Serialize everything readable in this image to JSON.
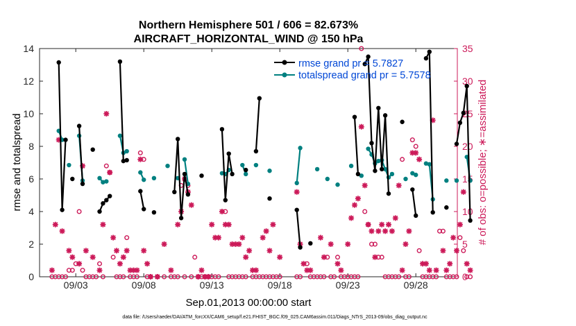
{
  "chart_data": {
    "type": "line",
    "title": "Northern Hemisphere 501 / 606 = 82.673%",
    "subtitle": "AIRCRAFT_HORIZONTAL_WIND @ 150 hPa",
    "xlabel": "Sep.01,2013 00:00:00 start",
    "ylabel": "rmse and totalspread",
    "y2label": "# of obs: o=possible; ∗=assimilated",
    "footnote": "data file: /Users/raeder/DAI/ATM_forcXX/CAM6_setup/f.e21.FHIST_BGC.f09_025.CAM6assim.011/Diags_NTrS_2013-09/obs_diag_output.nc",
    "xlim": [
      1,
      31
    ],
    "ylim": [
      0,
      14
    ],
    "y2lim": [
      0,
      35
    ],
    "xticks": [
      3,
      8,
      13,
      18,
      23,
      28
    ],
    "xtick_labels": [
      "09/03",
      "09/08",
      "09/13",
      "09/18",
      "09/23",
      "09/28"
    ],
    "yticks": [
      0,
      2,
      4,
      6,
      8,
      10,
      12,
      14
    ],
    "y2ticks": [
      0,
      5,
      10,
      15,
      20,
      25,
      30,
      35
    ],
    "legend": {
      "position": "top-right",
      "entries": [
        "rmse grand pr = 5.7827",
        "totalspread grand pr = 5.7578"
      ]
    },
    "colors": {
      "rmse": "#000000",
      "spread": "#008080",
      "obs": "#cc1a59",
      "legend_text": "#0047d6"
    },
    "series": [
      {
        "name": "rmse",
        "axis": "left",
        "segments": [
          [
            [
              1.75,
              13.15
            ],
            [
              2,
              4.1
            ],
            [
              2.25,
              8.4
            ]
          ],
          [
            [
              2.75,
              6.0
            ]
          ],
          [
            [
              3.25,
              9.25
            ],
            [
              3.5,
              5.7
            ]
          ],
          [
            [
              4.25,
              7.8
            ]
          ],
          [
            [
              4.75,
              4.0
            ],
            [
              5,
              4.5
            ],
            [
              5.25,
              4.7
            ],
            [
              5.5,
              4.95
            ]
          ],
          [
            [
              6.25,
              13.2
            ],
            [
              6.5,
              7.1
            ],
            [
              6.75,
              7.15
            ]
          ],
          [
            [
              7.75,
              5.25
            ],
            [
              8,
              4.15
            ]
          ],
          [
            [
              8.75,
              3.95
            ]
          ],
          [
            [
              10.25,
              5.2
            ],
            [
              10.5,
              8.45
            ],
            [
              10.75,
              3.6
            ],
            [
              11,
              6.3
            ],
            [
              11.25,
              5.05
            ]
          ],
          [
            [
              12.25,
              6.2
            ]
          ],
          [
            [
              13.75,
              9.05
            ],
            [
              14,
              4.7
            ],
            [
              14.25,
              7.55
            ],
            [
              14.5,
              6.3
            ]
          ],
          [
            [
              15.5,
              6.55
            ]
          ],
          [
            [
              16.25,
              7.7
            ],
            [
              16.5,
              10.95
            ]
          ],
          [
            [
              17.25,
              4.8
            ]
          ],
          [
            [
              19.25,
              4.1
            ],
            [
              19.5,
              1.8
            ]
          ],
          [
            [
              20.25,
              2.05
            ]
          ],
          [
            [
              23.5,
              9.8
            ],
            [
              23.75,
              6.3
            ]
          ],
          [
            [
              24.25,
              13.05
            ],
            [
              24.5,
              13.5
            ],
            [
              24.75,
              8.2
            ],
            [
              25,
              6.5
            ],
            [
              25.25,
              10.35
            ],
            [
              25.5,
              6.6
            ],
            [
              25.75,
              9.9
            ],
            [
              26,
              5.1
            ]
          ],
          [
            [
              27,
              9.5
            ]
          ],
          [
            [
              27.75,
              5.35
            ],
            [
              28,
              3.75
            ]
          ],
          [
            [
              28.75,
              13.4
            ],
            [
              29,
              13.8
            ],
            [
              29.25,
              3.95
            ]
          ],
          [
            [
              30.25,
              4.25
            ]
          ],
          [
            [
              31,
              8.15
            ],
            [
              31.25,
              9.45
            ],
            [
              31.5,
              10.05
            ],
            [
              31.75,
              11.7
            ],
            [
              32,
              3.45
            ]
          ]
        ]
      },
      {
        "name": "totalspread",
        "axis": "left",
        "segments": [
          [
            [
              1.75,
              8.95
            ],
            [
              2,
              8.4
            ]
          ],
          [
            [
              2.5,
              6.85
            ]
          ],
          [
            [
              3.25,
              8.65
            ],
            [
              3.5,
              5.9
            ]
          ],
          [
            [
              4.75,
              6.05
            ],
            [
              5,
              5.8
            ],
            [
              5.25,
              5.85
            ]
          ],
          [
            [
              6.25,
              8.65
            ],
            [
              6.5,
              7.6
            ],
            [
              6.75,
              7.7
            ]
          ],
          [
            [
              7.75,
              6.4
            ],
            [
              8,
              5.95
            ]
          ],
          [
            [
              8.75,
              6.05
            ]
          ],
          [
            [
              9.75,
              6.8
            ]
          ],
          [
            [
              10.5,
              6.05
            ]
          ],
          [
            [
              11,
              7.2
            ],
            [
              11.25,
              5.7
            ]
          ],
          [
            [
              13.75,
              6.35
            ],
            [
              14,
              6.3
            ],
            [
              14.25,
              6.55
            ]
          ],
          [
            [
              15.25,
              6.85
            ],
            [
              15.5,
              6.3
            ]
          ],
          [
            [
              16.25,
              6.85
            ]
          ],
          [
            [
              17.25,
              6.5
            ]
          ],
          [
            [
              19.25,
              5.75
            ],
            [
              19.5,
              7.9
            ]
          ],
          [
            [
              20.75,
              6.6
            ]
          ],
          [
            [
              21.5,
              6.0
            ]
          ],
          [
            [
              22.25,
              5.65
            ]
          ],
          [
            [
              23.25,
              6.8
            ]
          ],
          [
            [
              24,
              6.2
            ]
          ],
          [
            [
              24.5,
              7.85
            ],
            [
              24.75,
              7.5
            ],
            [
              25,
              6.95
            ],
            [
              25.25,
              7.1
            ],
            [
              25.5,
              7.15
            ],
            [
              25.75,
              6.6
            ],
            [
              26,
              6.1
            ],
            [
              26.25,
              6.3
            ]
          ],
          [
            [
              27.25,
              6.0
            ]
          ],
          [
            [
              27.75,
              6.35
            ],
            [
              28,
              6.25
            ]
          ],
          [
            [
              28.75,
              6.95
            ],
            [
              29,
              6.9
            ],
            [
              29.25,
              4.75
            ]
          ],
          [
            [
              30.25,
              5.9
            ]
          ],
          [
            [
              31,
              5.9
            ]
          ],
          [
            [
              31.75,
              7.35
            ],
            [
              32,
              5.9
            ]
          ]
        ]
      }
    ],
    "obs_possible": [
      [
        1.25,
        0
      ],
      [
        1.5,
        0
      ],
      [
        1.75,
        0
      ],
      [
        2,
        0
      ],
      [
        2.25,
        0
      ],
      [
        2.5,
        1
      ],
      [
        2.75,
        1
      ],
      [
        3,
        2
      ],
      [
        3.25,
        10
      ],
      [
        3.5,
        1
      ],
      [
        3.75,
        0
      ],
      [
        4,
        0
      ],
      [
        4.25,
        0
      ],
      [
        4.5,
        0
      ],
      [
        4.75,
        2
      ],
      [
        5,
        0
      ],
      [
        5.25,
        17
      ],
      [
        5.5,
        16
      ],
      [
        5.75,
        3
      ],
      [
        6,
        0
      ],
      [
        6.25,
        0
      ],
      [
        6.5,
        0
      ],
      [
        6.75,
        6
      ],
      [
        7,
        0
      ],
      [
        7.25,
        0
      ],
      [
        7.5,
        0
      ],
      [
        7.75,
        19
      ],
      [
        8,
        18
      ],
      [
        8.25,
        0
      ],
      [
        8.5,
        0
      ],
      [
        9,
        0
      ],
      [
        9.5,
        0
      ],
      [
        10,
        0
      ],
      [
        10.25,
        0
      ],
      [
        10.5,
        0
      ],
      [
        10.75,
        14
      ],
      [
        11,
        0
      ],
      [
        11.25,
        14
      ],
      [
        11.5,
        0
      ],
      [
        11.75,
        3
      ],
      [
        12,
        0
      ],
      [
        12.25,
        0
      ],
      [
        12.5,
        0
      ],
      [
        12.75,
        0
      ],
      [
        13,
        0
      ],
      [
        13.25,
        0
      ],
      [
        13.5,
        0
      ],
      [
        14,
        10
      ],
      [
        14.25,
        0
      ],
      [
        14.5,
        0
      ],
      [
        14.75,
        0
      ],
      [
        15,
        0
      ],
      [
        15.25,
        0
      ],
      [
        15.5,
        0
      ],
      [
        16,
        0
      ],
      [
        16.25,
        0
      ],
      [
        16.5,
        0
      ],
      [
        16.75,
        0
      ],
      [
        17,
        0
      ],
      [
        17.25,
        0
      ],
      [
        17.5,
        0
      ],
      [
        17.75,
        0
      ],
      [
        18,
        0
      ],
      [
        19.25,
        0
      ],
      [
        19.5,
        0
      ],
      [
        20,
        2
      ],
      [
        20.25,
        0
      ],
      [
        20.5,
        0
      ],
      [
        20.75,
        0
      ],
      [
        21,
        0
      ],
      [
        21.25,
        0
      ],
      [
        21.5,
        3
      ],
      [
        21.75,
        0
      ],
      [
        22,
        0
      ],
      [
        22.25,
        3
      ],
      [
        22.5,
        0
      ],
      [
        22.75,
        0
      ],
      [
        23,
        0
      ],
      [
        23.25,
        0
      ],
      [
        23.5,
        0
      ],
      [
        23.75,
        0
      ],
      [
        24,
        35
      ],
      [
        24.25,
        10
      ],
      [
        24.5,
        8
      ],
      [
        24.75,
        5
      ],
      [
        25,
        5
      ],
      [
        25.25,
        3
      ],
      [
        25.5,
        3
      ],
      [
        25.75,
        0
      ],
      [
        26,
        0
      ],
      [
        26.25,
        0
      ],
      [
        26.5,
        0
      ],
      [
        26.75,
        0
      ],
      [
        27,
        18
      ],
      [
        27.25,
        0
      ],
      [
        27.5,
        0
      ],
      [
        27.75,
        21
      ],
      [
        28,
        20
      ],
      [
        28.25,
        4
      ],
      [
        28.5,
        0
      ],
      [
        28.75,
        0
      ],
      [
        29,
        0
      ],
      [
        29.25,
        0
      ],
      [
        29.5,
        0
      ],
      [
        29.75,
        7
      ],
      [
        30,
        7
      ],
      [
        30.25,
        0
      ],
      [
        30.5,
        0
      ],
      [
        30.75,
        0
      ],
      [
        31,
        0
      ],
      [
        31.25,
        6
      ],
      [
        31.5,
        4
      ],
      [
        31.75,
        0
      ],
      [
        32,
        0
      ]
    ],
    "obs_assimilated": [
      [
        1.25,
        1
      ],
      [
        1.5,
        8
      ],
      [
        1.75,
        21
      ],
      [
        2,
        7
      ],
      [
        2.5,
        4
      ],
      [
        2.75,
        3
      ],
      [
        3.25,
        2
      ],
      [
        3.5,
        17
      ],
      [
        3.75,
        4
      ],
      [
        4.25,
        3
      ],
      [
        4.75,
        1
      ],
      [
        5,
        8
      ],
      [
        5.25,
        25
      ],
      [
        5.5,
        16
      ],
      [
        5.75,
        6
      ],
      [
        6,
        4
      ],
      [
        6.25,
        2
      ],
      [
        6.5,
        3
      ],
      [
        6.75,
        4
      ],
      [
        7,
        1
      ],
      [
        7.25,
        1
      ],
      [
        7.5,
        1
      ],
      [
        7.75,
        18
      ],
      [
        8,
        4
      ],
      [
        8.25,
        2
      ],
      [
        8.5,
        0
      ],
      [
        9,
        0
      ],
      [
        9.5,
        5
      ],
      [
        10,
        1
      ],
      [
        10.5,
        8
      ],
      [
        10.75,
        10
      ],
      [
        11,
        15
      ],
      [
        11.25,
        13
      ],
      [
        11.5,
        11
      ],
      [
        12,
        0
      ],
      [
        12.25,
        1
      ],
      [
        12.5,
        0
      ],
      [
        12.75,
        0
      ],
      [
        13,
        8
      ],
      [
        13.25,
        6
      ],
      [
        13.5,
        6
      ],
      [
        13.75,
        10
      ],
      [
        14,
        8
      ],
      [
        14.25,
        8
      ],
      [
        14.5,
        5
      ],
      [
        14.75,
        5
      ],
      [
        15,
        5
      ],
      [
        15.25,
        6
      ],
      [
        15.5,
        3
      ],
      [
        15.75,
        4
      ],
      [
        16,
        1
      ],
      [
        16.25,
        1
      ],
      [
        16.75,
        6
      ],
      [
        17,
        7
      ],
      [
        17.25,
        4
      ],
      [
        17.5,
        8
      ],
      [
        18,
        3
      ],
      [
        19.25,
        13
      ],
      [
        19.5,
        5
      ],
      [
        19.75,
        2
      ],
      [
        20,
        1
      ],
      [
        20.25,
        1
      ],
      [
        21,
        6
      ],
      [
        21.25,
        3
      ],
      [
        21.75,
        5
      ],
      [
        22.25,
        2
      ],
      [
        22.5,
        1
      ],
      [
        23,
        5
      ],
      [
        23.25,
        9
      ],
      [
        23.5,
        11
      ],
      [
        23.75,
        12
      ],
      [
        24,
        23
      ],
      [
        24.25,
        14
      ],
      [
        24.5,
        8
      ],
      [
        24.75,
        7
      ],
      [
        25,
        3
      ],
      [
        25.25,
        7
      ],
      [
        25.5,
        8
      ],
      [
        25.75,
        7
      ],
      [
        26,
        8
      ],
      [
        26.25,
        7
      ],
      [
        26.5,
        9
      ],
      [
        26.75,
        14
      ],
      [
        27,
        1
      ],
      [
        27.25,
        5
      ],
      [
        27.5,
        7
      ],
      [
        27.75,
        19
      ],
      [
        28,
        19
      ],
      [
        28.25,
        18
      ],
      [
        28.5,
        2
      ],
      [
        28.75,
        2
      ],
      [
        29,
        1
      ],
      [
        29.25,
        24
      ],
      [
        29.5,
        1
      ],
      [
        30,
        4
      ],
      [
        30.25,
        1
      ],
      [
        30.5,
        2
      ],
      [
        30.75,
        6
      ],
      [
        31,
        4
      ],
      [
        31.25,
        8
      ],
      [
        31.5,
        13
      ],
      [
        31.75,
        2
      ],
      [
        32,
        1
      ]
    ]
  }
}
